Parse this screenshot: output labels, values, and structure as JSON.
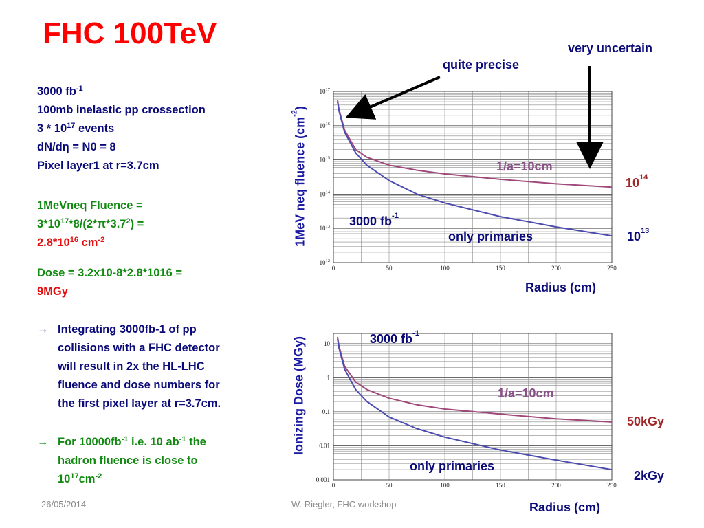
{
  "title": "FHC 100TeV",
  "left": {
    "lines": [
      {
        "pre": "3000 fb",
        "sup": "-1",
        "post": ""
      },
      {
        "pre": "100mb inelastic pp crossection",
        "sup": "",
        "post": ""
      },
      {
        "pre": "3 * 10",
        "sup": "17",
        "post": " events"
      },
      {
        "pre": "dN/dη = N0 = 8",
        "sup": "",
        "post": ""
      },
      {
        "pre": "Pixel layer1 at r=3.7cm",
        "sup": "",
        "post": ""
      }
    ],
    "fluence_label": "1MeVneq Fluence =",
    "fluence_formula": {
      "a": "3*10",
      "a_sup": "17",
      "b": "*8/(2*π*3.7",
      "b_sup": "2",
      "c": ") ="
    },
    "fluence_result": {
      "a": "2.8*10",
      "a_sup": "16",
      "b": " cm",
      "b_sup": "-2"
    },
    "dose_formula": "Dose = 3.2x10-8*2.8*1016 =",
    "dose_result": "9MGy",
    "bullet1_lines": [
      "Integrating 3000fb-1 of pp",
      "collisions with a FHC detector",
      "will result in 2x the HL-LHC",
      "fluence and dose numbers for",
      "the first pixel layer at r=3.7cm."
    ],
    "bullet2": {
      "l1a": "For 10000fb",
      "l1sup": "-1",
      "l1b": " i.e. 10 ab",
      "l1sup2": "-1",
      "l1c": " the",
      "l2": "hadron fluence is close to",
      "l3a": "10",
      "l3sup": "17",
      "l3b": "cm",
      "l3sup2": "-2"
    }
  },
  "annotations": {
    "quite_precise": "quite precise",
    "very_uncertain": "very uncertain",
    "top_1a": "1/a=10cm",
    "top_3000": {
      "a": "3000 fb",
      "sup": "-1"
    },
    "top_primaries": "only primaries",
    "top_1e14": {
      "a": "10",
      "sup": "14"
    },
    "top_1e13": {
      "a": "10",
      "sup": "13"
    },
    "top_radius": "Radius (cm)",
    "top_ylabel": {
      "a": "1MeV neq fluence (cm",
      "sup": "-2",
      "b": ")"
    },
    "bot_3000": {
      "a": "3000 fb",
      "sup": "-1"
    },
    "bot_1a": "1/a=10cm",
    "bot_primaries": "only primaries",
    "bot_50kgy": "50kGy",
    "bot_2kgy": "2kGy",
    "bot_radius": "Radius (cm)",
    "bot_ylabel": "Ionizing Dose (MGy)"
  },
  "footer": {
    "date": "26/05/2014",
    "author": "W. Riegler, FHC workshop"
  },
  "colors": {
    "title": "#ff0000",
    "navy": "#0a0a78",
    "green": "#128a12",
    "red": "#e41010",
    "curve_1a": "#a0487a",
    "curve_primaries": "#4c4cb0"
  },
  "chart_data": [
    {
      "type": "line",
      "ylabel": "1MeV neq fluence (cm-2)",
      "xlabel": "Radius (cm)",
      "xlim": [
        0,
        250
      ],
      "ylim": [
        1000000000000.0,
        1e+17
      ],
      "yscale": "log",
      "grid": true,
      "x_ticks": [
        0,
        50,
        100,
        150,
        200,
        250
      ],
      "y_ticks": [
        1000000000000.0,
        10000000000000.0,
        100000000000000.0,
        1000000000000000.0,
        1e+16,
        1e+17
      ],
      "y_tick_labels": [
        "10^12",
        "10^13",
        "10^14",
        "10^15",
        "10^16",
        "10^17"
      ],
      "series": [
        {
          "name": "1/a=10cm",
          "x": [
            3.7,
            5,
            10,
            20,
            30,
            50,
            75,
            100,
            150,
            200,
            250
          ],
          "y": [
            5.5e+16,
            3e+16,
            7500000000000000.0,
            2000000000000000.0,
            1200000000000000.0,
            700000000000000.0,
            500000000000000.0,
            390000000000000.0,
            270000000000000.0,
            200000000000000.0,
            160000000000000.0
          ]
        },
        {
          "name": "only primaries",
          "x": [
            3.7,
            5,
            10,
            20,
            30,
            50,
            75,
            100,
            150,
            200,
            250
          ],
          "y": [
            5e+16,
            2.7e+16,
            6500000000000000.0,
            1600000000000000.0,
            700000000000000.0,
            250000000000000.0,
            100000000000000.0,
            55000000000000.0,
            22000000000000.0,
            11000000000000.0,
            6000000000000.0
          ]
        }
      ]
    },
    {
      "type": "line",
      "ylabel": "Ionizing Dose (MGy)",
      "xlabel": "Radius (cm)",
      "xlim": [
        0,
        250
      ],
      "ylim": [
        0.001,
        20
      ],
      "yscale": "log",
      "grid": true,
      "x_ticks": [
        0,
        50,
        100,
        150,
        200,
        250
      ],
      "y_ticks": [
        0.001,
        0.01,
        0.1,
        1,
        10
      ],
      "y_tick_labels": [
        "0.001",
        "0.01",
        "0.1",
        "1",
        "10"
      ],
      "series": [
        {
          "name": "1/a=10cm",
          "x": [
            3.7,
            5,
            10,
            20,
            30,
            50,
            75,
            100,
            150,
            200,
            250
          ],
          "y": [
            16,
            8.5,
            2.2,
            0.75,
            0.45,
            0.25,
            0.16,
            0.12,
            0.085,
            0.062,
            0.05
          ]
        },
        {
          "name": "only primaries",
          "x": [
            3.7,
            5,
            10,
            20,
            30,
            50,
            75,
            100,
            150,
            200,
            250
          ],
          "y": [
            14,
            7.5,
            1.8,
            0.45,
            0.2,
            0.07,
            0.032,
            0.018,
            0.0075,
            0.0038,
            0.002
          ]
        }
      ]
    }
  ]
}
